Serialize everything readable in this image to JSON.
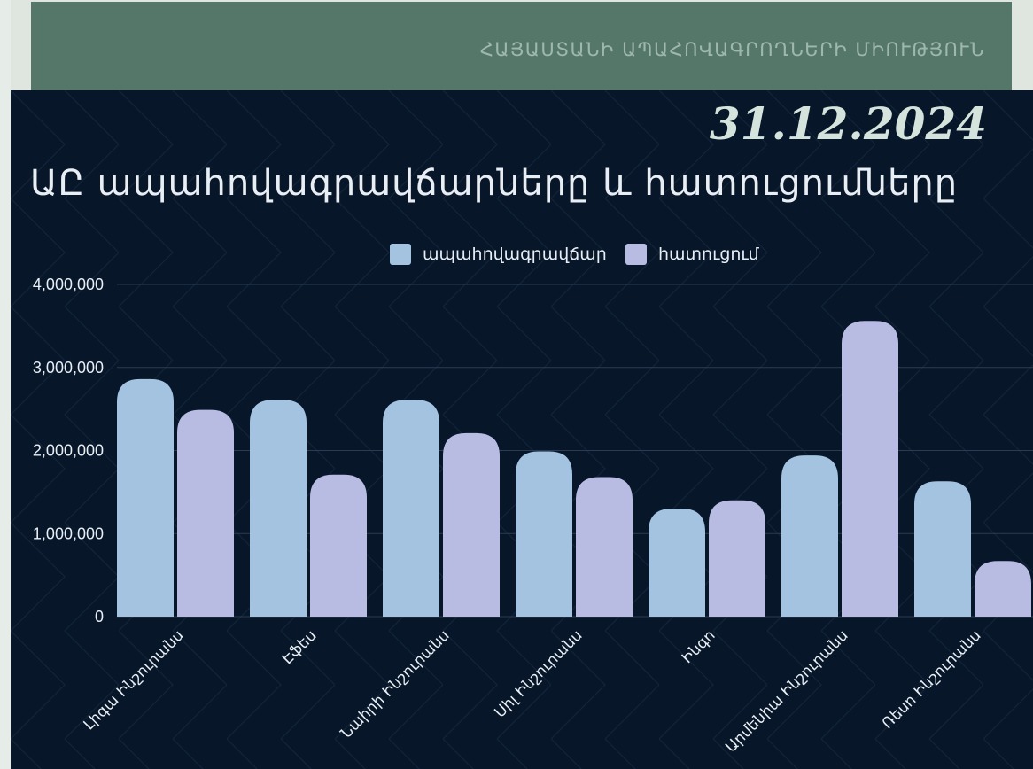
{
  "header": {
    "org_name": "ՀԱՅԱՍՏԱՆԻ ԱՊԱՀՈՎԱԳՐՈՂՆԵՐԻ ՄԻՈՒԹՅՈՒՆ",
    "date": "31.12.2024"
  },
  "colors": {
    "series_1": "#a3c3e1",
    "series_2": "#b8bce3",
    "background": "#071628",
    "header": "#55776a"
  },
  "chart_data": {
    "type": "bar",
    "title": "ԱԸ ապահովագրավճարները և հատուցումները",
    "xlabel": "",
    "ylabel": "",
    "ylim": [
      0,
      4000000
    ],
    "yticks": [
      0,
      1000000,
      2000000,
      3000000,
      4000000
    ],
    "ytick_labels": [
      "0",
      "1,000,000",
      "2,000,000",
      "3,000,000",
      "4,000,000"
    ],
    "grid": true,
    "legend_position": "top",
    "categories": [
      "Լիգա Ինշուրանս",
      "Էֆես",
      "Նաիրի Ինշուրանս",
      "Սիլ Ինշուրանս",
      "Ինգո",
      "Արմենիա Ինշուրանս",
      "Ռեսո Ինշուրանս"
    ],
    "series": [
      {
        "name": "ապահովագրավճար",
        "values": [
          2860000,
          2610000,
          2610000,
          1990000,
          1300000,
          1940000,
          1630000
        ]
      },
      {
        "name": "հատուցում",
        "values": [
          2490000,
          1710000,
          2210000,
          1680000,
          1400000,
          3560000,
          670000
        ]
      }
    ]
  }
}
